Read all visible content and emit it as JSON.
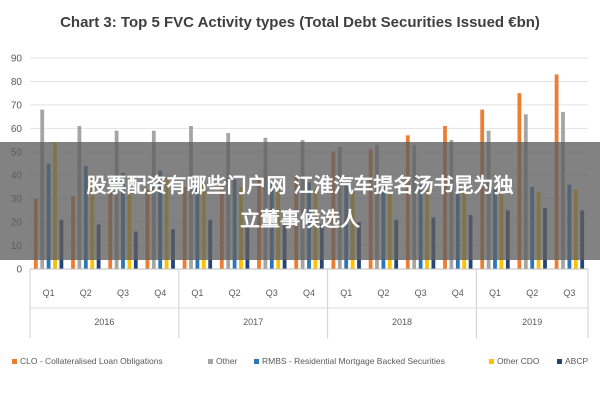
{
  "chart_data": {
    "type": "bar",
    "title": "Chart 3: Top 5 FVC Activity types (Total Debt Securities Issued €bn)",
    "categories": [
      "Q1",
      "Q2",
      "Q3",
      "Q4",
      "Q1",
      "Q2",
      "Q3",
      "Q4",
      "Q1",
      "Q2",
      "Q3",
      "Q4",
      "Q1",
      "Q2",
      "Q3"
    ],
    "groups": [
      {
        "label": "2016",
        "count": 4
      },
      {
        "label": "2017",
        "count": 4
      },
      {
        "label": "2018",
        "count": 4
      },
      {
        "label": "2019",
        "count": 3
      }
    ],
    "ylim": [
      0,
      90
    ],
    "yticks": [
      0,
      10,
      20,
      30,
      40,
      50,
      60,
      70,
      80,
      90
    ],
    "grid": true,
    "legend_position": "bottom",
    "series": [
      {
        "name": "CLO - Collateralised Loan Obligations",
        "color": "#ED7D31",
        "values": [
          30,
          31,
          33,
          34,
          35,
          36,
          38,
          40,
          50,
          51,
          57,
          61,
          68,
          75,
          83
        ]
      },
      {
        "name": "Other",
        "color": "#A5A5A5",
        "values": [
          68,
          61,
          59,
          59,
          61,
          58,
          56,
          55,
          52,
          53,
          53,
          55,
          59,
          66,
          67
        ]
      },
      {
        "name": "RMBS - Residential Mortgage Backed Securities",
        "color": "#2E75B6",
        "values": [
          45,
          44,
          41,
          42,
          39,
          38,
          37,
          37,
          36,
          37,
          36,
          36,
          35,
          35,
          36
        ]
      },
      {
        "name": "Other CDO",
        "color": "#FFC000",
        "values": [
          54,
          40,
          39,
          39,
          37,
          35,
          35,
          34,
          33,
          33,
          34,
          34,
          33,
          33,
          34
        ]
      },
      {
        "name": "ABCP",
        "color": "#264478",
        "values": [
          21,
          19,
          16,
          17,
          21,
          18,
          19,
          19,
          20,
          21,
          22,
          23,
          25,
          26,
          25
        ]
      }
    ]
  },
  "overlay": {
    "line1": "股票配资有哪些门户网 江淮汽车提名汤书昆为独",
    "line2": "立董事候选人"
  }
}
